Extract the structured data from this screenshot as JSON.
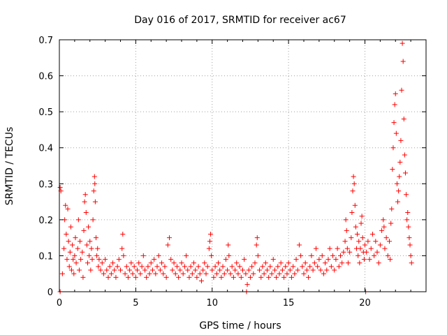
{
  "chart_data": {
    "type": "scatter",
    "title": "Day 016 of 2017, SRMTID for receiver ac67",
    "xlabel": "GPS time / hours",
    "ylabel": "SRMTID / TECUs",
    "xlim": [
      0,
      24
    ],
    "ylim": [
      0,
      0.7
    ],
    "xticks": [
      0,
      5,
      10,
      15,
      20
    ],
    "xtick_labels": [
      "0",
      "5",
      "10",
      "15",
      "20"
    ],
    "yticks": [
      0,
      0.1,
      0.2,
      0.3,
      0.4,
      0.5,
      0.6,
      0.7
    ],
    "ytick_labels": [
      "0",
      "0.1",
      "0.2",
      "0.3",
      "0.4",
      "0.5",
      "0.6",
      "0.7"
    ],
    "grid": true,
    "marker": "+",
    "series_color": "#ff0000",
    "series": [
      {
        "name": "SRMTID",
        "points": [
          [
            0.05,
            0.29
          ],
          [
            0.05,
            0.0
          ],
          [
            0.1,
            0.28
          ],
          [
            0.2,
            0.05
          ],
          [
            0.3,
            0.12
          ],
          [
            0.35,
            0.2
          ],
          [
            0.4,
            0.24
          ],
          [
            0.45,
            0.16
          ],
          [
            0.5,
            0.09
          ],
          [
            0.55,
            0.23
          ],
          [
            0.6,
            0.14
          ],
          [
            0.65,
            0.07
          ],
          [
            0.7,
            0.11
          ],
          [
            0.75,
            0.18
          ],
          [
            0.8,
            0.06
          ],
          [
            0.85,
            0.13
          ],
          [
            0.9,
            0.09
          ],
          [
            0.95,
            0.05
          ],
          [
            1.0,
            0.1
          ],
          [
            1.05,
            0.15
          ],
          [
            1.1,
            0.08
          ],
          [
            1.2,
            0.12
          ],
          [
            1.25,
            0.2
          ],
          [
            1.3,
            0.06
          ],
          [
            1.35,
            0.14
          ],
          [
            1.4,
            0.09
          ],
          [
            1.5,
            0.11
          ],
          [
            1.55,
            0.04
          ],
          [
            1.6,
            0.17
          ],
          [
            1.65,
            0.25
          ],
          [
            1.7,
            0.27
          ],
          [
            1.75,
            0.22
          ],
          [
            1.8,
            0.13
          ],
          [
            1.85,
            0.08
          ],
          [
            1.9,
            0.18
          ],
          [
            1.95,
            0.1
          ],
          [
            2.0,
            0.14
          ],
          [
            2.05,
            0.06
          ],
          [
            2.1,
            0.12
          ],
          [
            2.15,
            0.09
          ],
          [
            2.2,
            0.2
          ],
          [
            2.25,
            0.28
          ],
          [
            2.3,
            0.32
          ],
          [
            2.32,
            0.3
          ],
          [
            2.35,
            0.25
          ],
          [
            2.4,
            0.15
          ],
          [
            2.45,
            0.1
          ],
          [
            2.5,
            0.12
          ],
          [
            2.55,
            0.07
          ],
          [
            2.6,
            0.09
          ],
          [
            2.7,
            0.06
          ],
          [
            2.8,
            0.08
          ],
          [
            2.9,
            0.05
          ],
          [
            3.0,
            0.09
          ],
          [
            3.1,
            0.06
          ],
          [
            3.2,
            0.04
          ],
          [
            3.3,
            0.07
          ],
          [
            3.4,
            0.05
          ],
          [
            3.5,
            0.08
          ],
          [
            3.6,
            0.06
          ],
          [
            3.7,
            0.04
          ],
          [
            3.8,
            0.07
          ],
          [
            3.9,
            0.09
          ],
          [
            4.0,
            0.06
          ],
          [
            4.1,
            0.12
          ],
          [
            4.15,
            0.16
          ],
          [
            4.2,
            0.1
          ],
          [
            4.3,
            0.05
          ],
          [
            4.4,
            0.07
          ],
          [
            4.5,
            0.04
          ],
          [
            4.6,
            0.06
          ],
          [
            4.7,
            0.08
          ],
          [
            4.8,
            0.05
          ],
          [
            4.9,
            0.07
          ],
          [
            5.0,
            0.04
          ],
          [
            5.1,
            0.06
          ],
          [
            5.2,
            0.08
          ],
          [
            5.3,
            0.05
          ],
          [
            5.4,
            0.07
          ],
          [
            5.5,
            0.1
          ],
          [
            5.6,
            0.06
          ],
          [
            5.7,
            0.04
          ],
          [
            5.8,
            0.07
          ],
          [
            5.9,
            0.05
          ],
          [
            6.0,
            0.08
          ],
          [
            6.1,
            0.06
          ],
          [
            6.2,
            0.09
          ],
          [
            6.3,
            0.05
          ],
          [
            6.4,
            0.07
          ],
          [
            6.5,
            0.1
          ],
          [
            6.6,
            0.06
          ],
          [
            6.7,
            0.08
          ],
          [
            6.8,
            0.05
          ],
          [
            6.9,
            0.07
          ],
          [
            7.0,
            0.04
          ],
          [
            7.1,
            0.13
          ],
          [
            7.2,
            0.15
          ],
          [
            7.3,
            0.09
          ],
          [
            7.4,
            0.06
          ],
          [
            7.5,
            0.08
          ],
          [
            7.6,
            0.05
          ],
          [
            7.7,
            0.07
          ],
          [
            7.8,
            0.04
          ],
          [
            7.9,
            0.06
          ],
          [
            8.0,
            0.08
          ],
          [
            8.1,
            0.05
          ],
          [
            8.2,
            0.07
          ],
          [
            8.3,
            0.1
          ],
          [
            8.4,
            0.06
          ],
          [
            8.5,
            0.04
          ],
          [
            8.6,
            0.07
          ],
          [
            8.7,
            0.05
          ],
          [
            8.8,
            0.08
          ],
          [
            8.9,
            0.06
          ],
          [
            9.0,
            0.04
          ],
          [
            9.1,
            0.07
          ],
          [
            9.2,
            0.05
          ],
          [
            9.3,
            0.03
          ],
          [
            9.4,
            0.06
          ],
          [
            9.5,
            0.08
          ],
          [
            9.6,
            0.05
          ],
          [
            9.7,
            0.07
          ],
          [
            9.8,
            0.12
          ],
          [
            9.85,
            0.14
          ],
          [
            9.9,
            0.16
          ],
          [
            9.95,
            0.1
          ],
          [
            10.0,
            0.06
          ],
          [
            10.1,
            0.04
          ],
          [
            10.2,
            0.07
          ],
          [
            10.3,
            0.05
          ],
          [
            10.4,
            0.08
          ],
          [
            10.5,
            0.06
          ],
          [
            10.6,
            0.04
          ],
          [
            10.7,
            0.07
          ],
          [
            10.8,
            0.05
          ],
          [
            10.9,
            0.09
          ],
          [
            11.0,
            0.06
          ],
          [
            11.05,
            0.13
          ],
          [
            11.1,
            0.1
          ],
          [
            11.2,
            0.05
          ],
          [
            11.3,
            0.07
          ],
          [
            11.4,
            0.04
          ],
          [
            11.5,
            0.06
          ],
          [
            11.6,
            0.08
          ],
          [
            11.7,
            0.05
          ],
          [
            11.8,
            0.07
          ],
          [
            11.9,
            0.04
          ],
          [
            12.0,
            0.06
          ],
          [
            12.1,
            0.09
          ],
          [
            12.2,
            0.05
          ],
          [
            12.25,
            0.0
          ],
          [
            12.3,
            0.02
          ],
          [
            12.4,
            0.06
          ],
          [
            12.5,
            0.04
          ],
          [
            12.6,
            0.07
          ],
          [
            12.7,
            0.05
          ],
          [
            12.8,
            0.08
          ],
          [
            12.9,
            0.13
          ],
          [
            12.95,
            0.15
          ],
          [
            13.0,
            0.1
          ],
          [
            13.1,
            0.06
          ],
          [
            13.2,
            0.04
          ],
          [
            13.3,
            0.07
          ],
          [
            13.4,
            0.05
          ],
          [
            13.5,
            0.08
          ],
          [
            13.6,
            0.06
          ],
          [
            13.7,
            0.04
          ],
          [
            13.8,
            0.07
          ],
          [
            13.9,
            0.05
          ],
          [
            14.0,
            0.09
          ],
          [
            14.1,
            0.06
          ],
          [
            14.2,
            0.04
          ],
          [
            14.3,
            0.07
          ],
          [
            14.4,
            0.05
          ],
          [
            14.5,
            0.08
          ],
          [
            14.6,
            0.06
          ],
          [
            14.7,
            0.04
          ],
          [
            14.8,
            0.07
          ],
          [
            14.9,
            0.05
          ],
          [
            15.0,
            0.08
          ],
          [
            15.1,
            0.06
          ],
          [
            15.2,
            0.04
          ],
          [
            15.3,
            0.07
          ],
          [
            15.4,
            0.05
          ],
          [
            15.5,
            0.09
          ],
          [
            15.6,
            0.06
          ],
          [
            15.7,
            0.13
          ],
          [
            15.8,
            0.1
          ],
          [
            15.9,
            0.07
          ],
          [
            16.0,
            0.05
          ],
          [
            16.1,
            0.08
          ],
          [
            16.2,
            0.06
          ],
          [
            16.3,
            0.04
          ],
          [
            16.4,
            0.07
          ],
          [
            16.5,
            0.1
          ],
          [
            16.6,
            0.06
          ],
          [
            16.7,
            0.08
          ],
          [
            16.8,
            0.12
          ],
          [
            16.9,
            0.07
          ],
          [
            17.0,
            0.09
          ],
          [
            17.1,
            0.06
          ],
          [
            17.2,
            0.1
          ],
          [
            17.3,
            0.05
          ],
          [
            17.4,
            0.08
          ],
          [
            17.5,
            0.06
          ],
          [
            17.6,
            0.09
          ],
          [
            17.7,
            0.12
          ],
          [
            17.8,
            0.07
          ],
          [
            17.9,
            0.1
          ],
          [
            18.0,
            0.06
          ],
          [
            18.1,
            0.09
          ],
          [
            18.2,
            0.12
          ],
          [
            18.3,
            0.07
          ],
          [
            18.4,
            0.1
          ],
          [
            18.5,
            0.08
          ],
          [
            18.6,
            0.11
          ],
          [
            18.7,
            0.14
          ],
          [
            18.75,
            0.2
          ],
          [
            18.8,
            0.17
          ],
          [
            18.85,
            0.12
          ],
          [
            18.9,
            0.08
          ],
          [
            19.0,
            0.11
          ],
          [
            19.1,
            0.15
          ],
          [
            19.15,
            0.22
          ],
          [
            19.2,
            0.28
          ],
          [
            19.25,
            0.32
          ],
          [
            19.3,
            0.3
          ],
          [
            19.35,
            0.24
          ],
          [
            19.4,
            0.18
          ],
          [
            19.45,
            0.12
          ],
          [
            19.5,
            0.16
          ],
          [
            19.55,
            0.1
          ],
          [
            19.6,
            0.14
          ],
          [
            19.65,
            0.08
          ],
          [
            19.7,
            0.12
          ],
          [
            19.75,
            0.19
          ],
          [
            19.8,
            0.21
          ],
          [
            19.85,
            0.15
          ],
          [
            19.9,
            0.11
          ],
          [
            19.95,
            0.09
          ],
          [
            20.0,
            0.13
          ],
          [
            20.05,
            0.0
          ],
          [
            20.1,
            0.11
          ],
          [
            20.2,
            0.14
          ],
          [
            20.3,
            0.09
          ],
          [
            20.4,
            0.12
          ],
          [
            20.5,
            0.16
          ],
          [
            20.6,
            0.1
          ],
          [
            20.7,
            0.14
          ],
          [
            20.8,
            0.11
          ],
          [
            20.9,
            0.08
          ],
          [
            21.0,
            0.13
          ],
          [
            21.1,
            0.17
          ],
          [
            21.2,
            0.2
          ],
          [
            21.25,
            0.18
          ],
          [
            21.3,
            0.12
          ],
          [
            21.4,
            0.15
          ],
          [
            21.5,
            0.1
          ],
          [
            21.6,
            0.14
          ],
          [
            21.65,
            0.09
          ],
          [
            21.7,
            0.19
          ],
          [
            21.75,
            0.23
          ],
          [
            21.8,
            0.34
          ],
          [
            21.85,
            0.4
          ],
          [
            21.9,
            0.47
          ],
          [
            21.95,
            0.52
          ],
          [
            22.0,
            0.55
          ],
          [
            22.05,
            0.44
          ],
          [
            22.1,
            0.3
          ],
          [
            22.15,
            0.25
          ],
          [
            22.2,
            0.28
          ],
          [
            22.25,
            0.32
          ],
          [
            22.3,
            0.36
          ],
          [
            22.35,
            0.42
          ],
          [
            22.4,
            0.56
          ],
          [
            22.45,
            0.69
          ],
          [
            22.5,
            0.64
          ],
          [
            22.55,
            0.48
          ],
          [
            22.6,
            0.38
          ],
          [
            22.65,
            0.33
          ],
          [
            22.7,
            0.27
          ],
          [
            22.75,
            0.2
          ],
          [
            22.8,
            0.22
          ],
          [
            22.85,
            0.18
          ],
          [
            22.9,
            0.15
          ],
          [
            22.95,
            0.13
          ],
          [
            23.0,
            0.1
          ],
          [
            23.05,
            0.08
          ]
        ]
      }
    ]
  }
}
